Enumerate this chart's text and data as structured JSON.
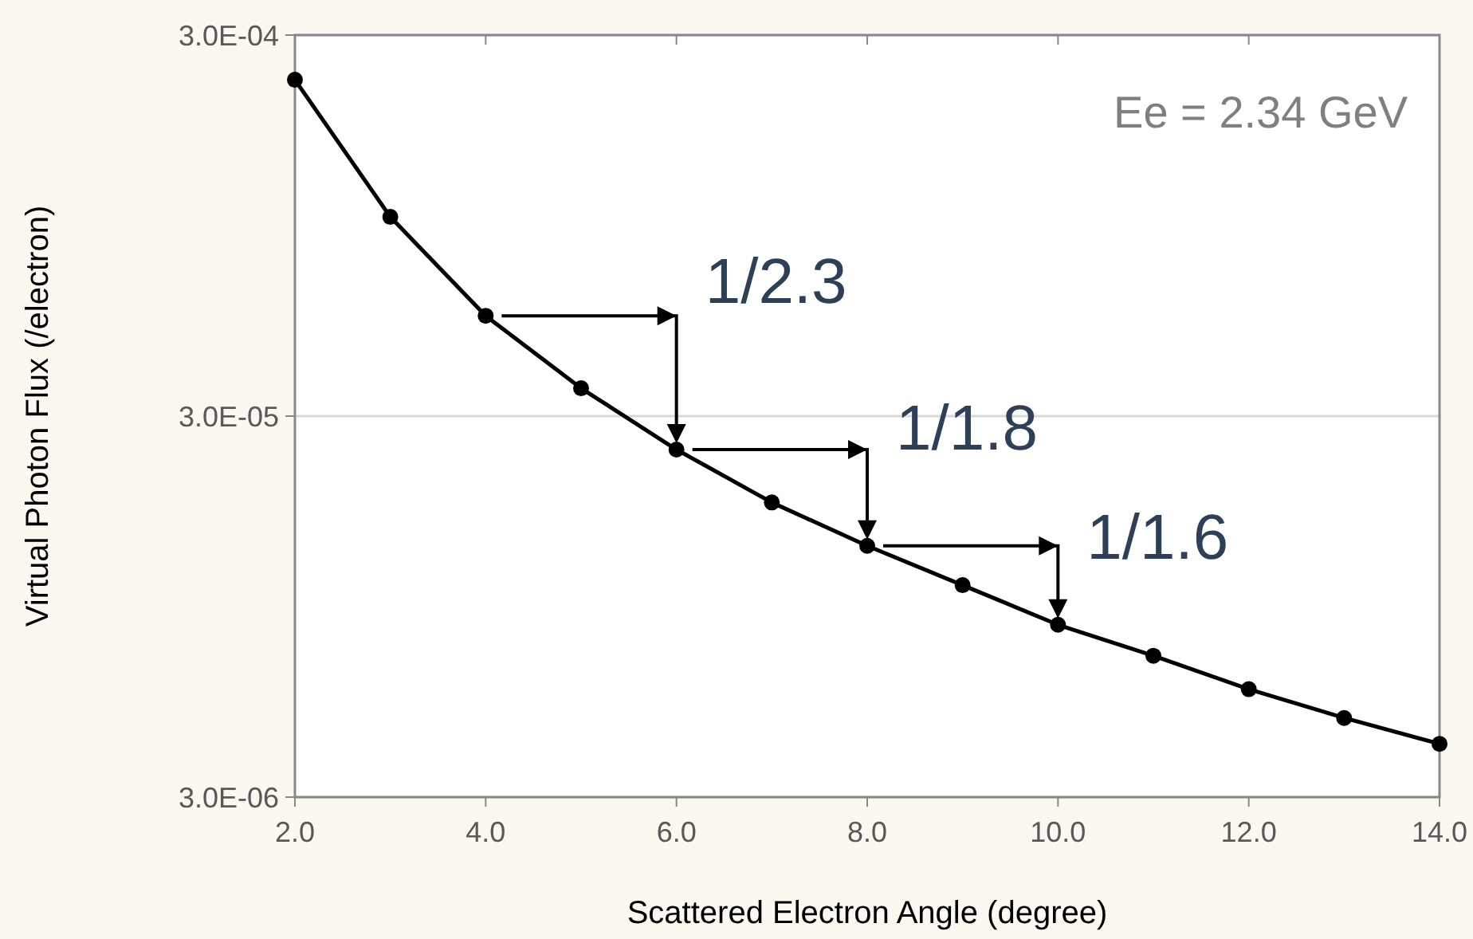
{
  "chart_data": {
    "type": "line",
    "xlabel": "Scattered Electron Angle (degree)",
    "ylabel": "Virtual Photon Flux (/electron)",
    "x": [
      2,
      3,
      4,
      5,
      6,
      7,
      8,
      9,
      10,
      11,
      12,
      13,
      14
    ],
    "series": [
      {
        "color": "#000000",
        "values": [
          0.000229,
          0.0001,
          5.5e-05,
          3.55e-05,
          2.45e-05,
          1.78e-05,
          1.37e-05,
          1.08e-05,
          8.5e-06,
          7.05e-06,
          5.76e-06,
          4.84e-06,
          4.14e-06
        ]
      }
    ],
    "log": true,
    "marker": "circle",
    "line_style": "solid",
    "grid": "y",
    "xlim": [
      2,
      14
    ],
    "xticks": [
      {
        "value": 2,
        "label": "2.0"
      },
      {
        "value": 4,
        "label": "4.0"
      },
      {
        "value": 6,
        "label": "6.0"
      },
      {
        "value": 8,
        "label": "8.0"
      },
      {
        "value": 10,
        "label": "10.0"
      },
      {
        "value": 12,
        "label": "12.0"
      },
      {
        "value": 14,
        "label": "14.0"
      }
    ],
    "ylim": [
      3e-06,
      0.0003
    ],
    "yticks": [
      {
        "value": 3e-06,
        "label": "3.0E-06"
      },
      {
        "value": 3e-05,
        "label": "3.0E-05"
      },
      {
        "value": 0.0003,
        "label": "3.0E-04"
      }
    ],
    "annotations": [
      "Ee = 2.34 GeV",
      {
        "text": "1/2.3",
        "x": 6,
        "y": 2.45e-05
      },
      {
        "text": "1/1.8",
        "x": 8,
        "y": 1.37e-05
      },
      {
        "text": "1/1.6",
        "x": 10,
        "y": 8.5e-06
      }
    ]
  }
}
